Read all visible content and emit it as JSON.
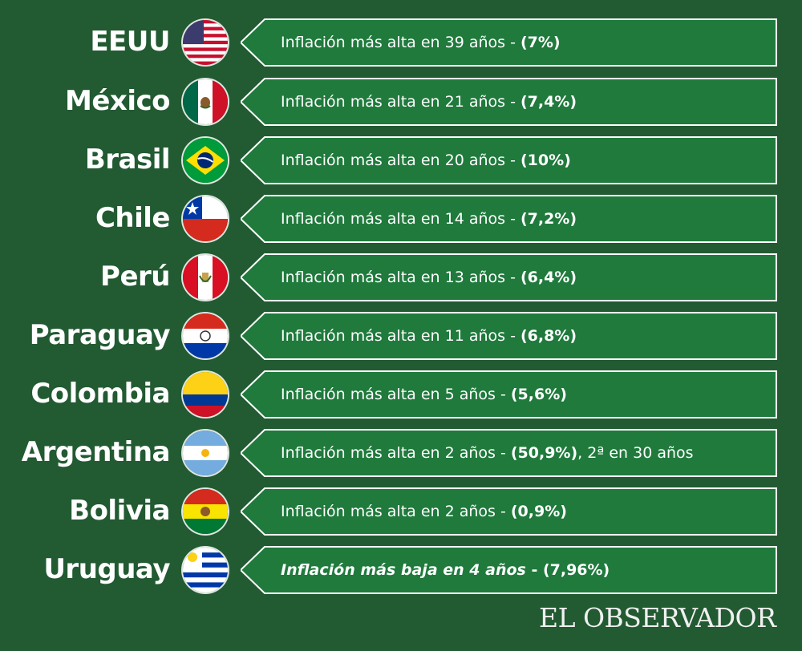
{
  "rows": [
    {
      "country": "EEUU",
      "flag_icon": "usa-flag-icon",
      "text": "Inflación más alta en 39 años - ",
      "value": "(7%)",
      "extra": ""
    },
    {
      "country": "México",
      "flag_icon": "mexico-flag-icon",
      "text": "Inflación más alta en 21 años - ",
      "value": "(7,4%)",
      "extra": ""
    },
    {
      "country": "Brasil",
      "flag_icon": "brazil-flag-icon",
      "text": "Inflación más alta en 20 años - ",
      "value": "(10%)",
      "extra": ""
    },
    {
      "country": "Chile",
      "flag_icon": "chile-flag-icon",
      "text": "Inflación más alta en 14 años - ",
      "value": "(7,2%)",
      "extra": ""
    },
    {
      "country": "Perú",
      "flag_icon": "peru-flag-icon",
      "text": "Inflación más alta en 13 años - ",
      "value": "(6,4%)",
      "extra": ""
    },
    {
      "country": "Paraguay",
      "flag_icon": "paraguay-flag-icon",
      "text": "Inflación más alta en 11 años - ",
      "value": "(6,8%)",
      "extra": ""
    },
    {
      "country": "Colombia",
      "flag_icon": "colombia-flag-icon",
      "text": "Inflación más alta en 5 años - ",
      "value": "(5,6%)",
      "extra": ""
    },
    {
      "country": "Argentina",
      "flag_icon": "argentina-flag-icon",
      "text": "Inflación más alta en 2 años - ",
      "value": "(50,9%)",
      "extra": ", 2ª en 30 años"
    },
    {
      "country": "Bolivia",
      "flag_icon": "bolivia-flag-icon",
      "text": "Inflación más alta en 2 años - ",
      "value": "(0,9%)",
      "extra": ""
    },
    {
      "country": "Uruguay",
      "flag_icon": "uruguay-flag-icon",
      "text": "Inflación más baja en 4 años",
      "value": " - (7,96%)",
      "extra": "",
      "italic": true
    }
  ],
  "logo": "EL OBSERVADOR",
  "colors": {
    "background": "#225a32",
    "banner": "#1f7a3c",
    "banner_border": "#ffffff"
  }
}
